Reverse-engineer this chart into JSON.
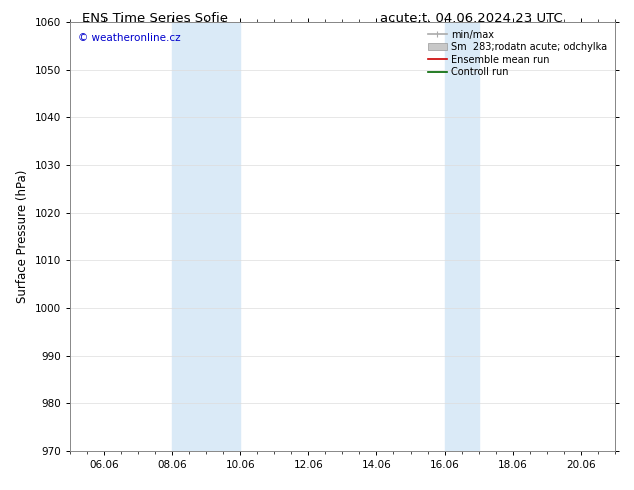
{
  "title_left": "ENS Time Series Sofie",
  "title_right": "acute;t. 04.06.2024 23 UTC",
  "ylabel": "Surface Pressure (hPa)",
  "ylim": [
    970,
    1060
  ],
  "yticks": [
    970,
    980,
    990,
    1000,
    1010,
    1020,
    1030,
    1040,
    1050,
    1060
  ],
  "xtick_labels": [
    "06.06",
    "08.06",
    "10.06",
    "12.06",
    "14.06",
    "16.06",
    "18.06",
    "20.06"
  ],
  "xtick_positions": [
    6,
    8,
    10,
    12,
    14,
    16,
    18,
    20
  ],
  "xlim": [
    5.0,
    21.0
  ],
  "watermark": "© weatheronline.cz",
  "watermark_color": "#0000cc",
  "shaded_bands": [
    {
      "x_start": 8.0,
      "x_end": 10.0
    },
    {
      "x_start": 16.0,
      "x_end": 17.0
    }
  ],
  "shade_color": "#daeaf7",
  "legend_entries": [
    {
      "label": "min/max",
      "color": "#aaaaaa",
      "lw": 1.2,
      "type": "minmax"
    },
    {
      "label": "Sm  283;rodatn acute; odchylka",
      "color": "#c8c8c8",
      "lw": 7,
      "type": "band"
    },
    {
      "label": "Ensemble mean run",
      "color": "#cc0000",
      "lw": 1.2,
      "type": "line"
    },
    {
      "label": "Controll run",
      "color": "#006600",
      "lw": 1.2,
      "type": "line"
    }
  ],
  "bg_color": "#ffffff",
  "grid_color": "#dddddd",
  "tick_label_size": 7.5,
  "title_fontsize": 9.5,
  "ylabel_fontsize": 8.5
}
